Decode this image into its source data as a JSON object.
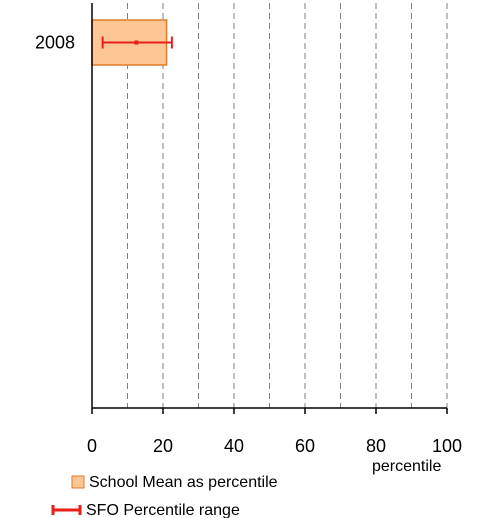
{
  "chart_data": {
    "type": "bar",
    "orientation": "horizontal",
    "categories": [
      "2008"
    ],
    "series": [
      {
        "name": "School Mean as percentile",
        "values": [
          21
        ],
        "color": "#fcc794",
        "border_color": "#e07b28"
      }
    ],
    "error_ranges": [
      {
        "name": "SFO Percentile range",
        "category": "2008",
        "low": 3,
        "mid": 12.5,
        "high": 22.5,
        "color": "#e8201a"
      }
    ],
    "xlim": [
      0,
      100
    ],
    "x_ticks": [
      0,
      20,
      40,
      60,
      80,
      100
    ],
    "x_gridlines": [
      10,
      20,
      30,
      40,
      50,
      60,
      70,
      80,
      90,
      100
    ],
    "grid": "vertical-dashed",
    "xlabel": "percentile",
    "ylabel": "",
    "title": "",
    "legend_position": "bottom-left"
  }
}
